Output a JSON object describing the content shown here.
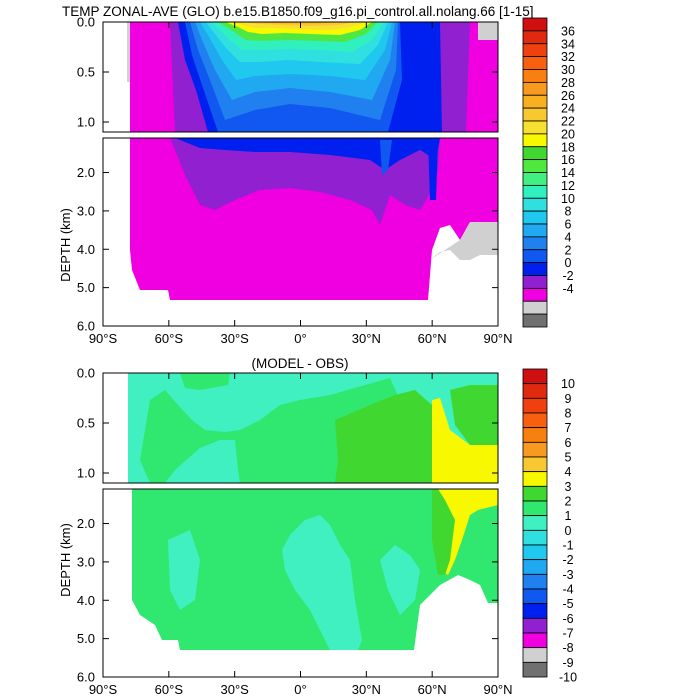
{
  "figure": {
    "title": "TEMP ZONAL-AVE (GLO) b.e15.B1850.f09_g16.pi_control.all.nolang.66 [1-15]"
  },
  "chart_data": [
    {
      "type": "heatmap",
      "title": "TEMP ZONAL-AVE (GLO) b.e15.B1850.f09_g16.pi_control.all.nolang.66 [1-15]",
      "ylabel": "DEPTH (km)",
      "x_ticks": [
        "90°S",
        "60°S",
        "30°S",
        "0°",
        "30°N",
        "60°N",
        "90°N"
      ],
      "x_tick_values": [
        -90,
        -60,
        -30,
        0,
        30,
        60,
        90
      ],
      "xlim": [
        -90,
        90
      ],
      "y_ticks_upper": [
        "0.0",
        "0.5",
        "1.0"
      ],
      "y_ticks_lower": [
        "2.0",
        "3.0",
        "4.0",
        "5.0",
        "6.0"
      ],
      "ylim_upper_km": [
        0,
        1.1
      ],
      "ylim_lower_km": [
        1.1,
        6.0
      ],
      "colorbar_labels": [
        "36",
        "34",
        "32",
        "30",
        "28",
        "26",
        "24",
        "22",
        "20",
        "18",
        "16",
        "14",
        "12",
        "10",
        "8",
        "6",
        "4",
        "2",
        "0",
        "-2",
        "-4"
      ],
      "colorbar_colors": [
        "#d01010",
        "#e02a10",
        "#f04010",
        "#f86010",
        "#f88010",
        "#f89a20",
        "#f8b020",
        "#f8c830",
        "#f8e030",
        "#f8f800",
        "#40d830",
        "#50e840",
        "#40f080",
        "#30f0c0",
        "#30e0e0",
        "#20c8f0",
        "#20a8f0",
        "#2080f0",
        "#1058f0",
        "#0020f0",
        "#9020d0",
        "#f000e0",
        "#d0d0d0",
        "#707070"
      ],
      "note_regions": "Filled contours of zonal-average temperature vs latitude and depth"
    },
    {
      "type": "heatmap",
      "title": "(MODEL - OBS)",
      "ylabel": "DEPTH (km)",
      "x_ticks": [
        "90°S",
        "60°S",
        "30°S",
        "0°",
        "30°N",
        "60°N",
        "90°N"
      ],
      "x_tick_values": [
        -90,
        -60,
        -30,
        0,
        30,
        60,
        90
      ],
      "xlim": [
        -90,
        90
      ],
      "y_ticks_upper": [
        "0.0",
        "0.5",
        "1.0"
      ],
      "y_ticks_lower": [
        "2.0",
        "3.0",
        "4.0",
        "5.0",
        "6.0"
      ],
      "ylim_upper_km": [
        0,
        1.1
      ],
      "ylim_lower_km": [
        1.1,
        6.0
      ],
      "colorbar_labels": [
        "10",
        "9",
        "8",
        "7",
        "6",
        "5",
        "4",
        "3",
        "2",
        "1",
        "0",
        "-1",
        "-2",
        "-3",
        "-4",
        "-5",
        "-6",
        "-7",
        "-8",
        "-9",
        "-10"
      ],
      "colorbar_colors": [
        "#d01010",
        "#e02a10",
        "#f04010",
        "#f86010",
        "#f88010",
        "#f89a20",
        "#f8c830",
        "#f8f800",
        "#40d830",
        "#30e870",
        "#40f0c0",
        "#30e0e0",
        "#20c8f0",
        "#20a8f0",
        "#2080f0",
        "#1058f0",
        "#0020f0",
        "#9020d0",
        "#f000e0",
        "#d0d0d0",
        "#707070"
      ]
    }
  ]
}
